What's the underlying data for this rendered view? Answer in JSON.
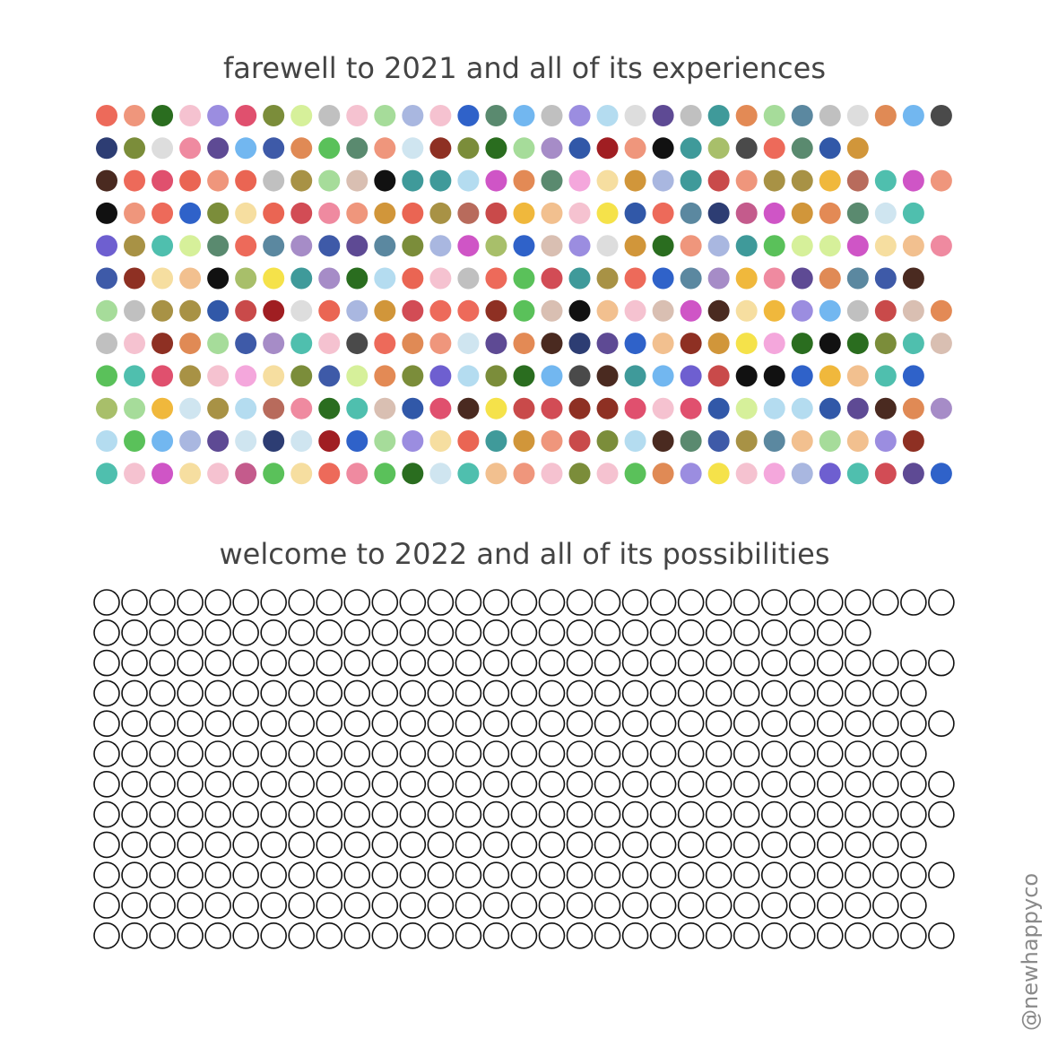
{
  "sections": [
    {
      "title": "farewell to 2021 and all of its experiences",
      "rows": [
        31,
        28,
        31,
        30,
        31,
        30,
        31,
        31,
        30,
        31,
        30,
        31
      ]
    },
    {
      "title": "welcome to 2022 and all of its possibilities",
      "rows": [
        31,
        28,
        31,
        30,
        31,
        30,
        31,
        31,
        30,
        31,
        30,
        31
      ]
    }
  ],
  "watermark": "@newhappyco"
}
